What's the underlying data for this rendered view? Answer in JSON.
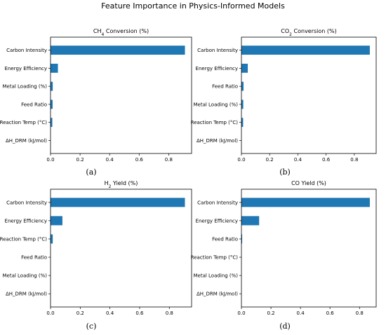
{
  "figure": {
    "title": "Feature Importance in Physics-Informed Models"
  },
  "chart_data": [
    {
      "type": "bar",
      "orientation": "horizontal",
      "title_main": "CH",
      "title_sub": "4",
      "title_rest": " Conversion (%)",
      "caption": "(a)",
      "categories": [
        "Carbon Intensity",
        "Energy Efficiency",
        "Metal Loading (%)",
        "Feed Ratio",
        "Reaction Temp (°C)",
        "ΔH_DRM (kJ/mol)"
      ],
      "values": [
        0.91,
        0.05,
        0.015,
        0.014,
        0.012,
        0.0
      ],
      "xticks": [
        "0.0",
        "0.2",
        "0.4",
        "0.6",
        "0.8"
      ],
      "xlim": [
        0,
        0.955
      ],
      "color": "#1f77b4"
    },
    {
      "type": "bar",
      "orientation": "horizontal",
      "title_main": "CO",
      "title_sub": "2",
      "title_rest": " Conversion (%)",
      "caption": "(b)",
      "categories": [
        "Carbon Intensity",
        "Energy Efficiency",
        "Feed Ratio",
        "Metal Loading (%)",
        "Reaction Temp (°C)",
        "ΔH_DRM (kJ/mol)"
      ],
      "values": [
        0.91,
        0.045,
        0.015,
        0.013,
        0.012,
        0.0
      ],
      "xticks": [
        "0.0",
        "0.2",
        "0.4",
        "0.6",
        "0.8"
      ],
      "xlim": [
        0,
        0.955
      ],
      "color": "#1f77b4"
    },
    {
      "type": "bar",
      "orientation": "horizontal",
      "title_main": "H",
      "title_sub": "2",
      "title_rest": " Yield (%)",
      "caption": "(c)",
      "categories": [
        "Carbon Intensity",
        "Energy Efficiency",
        "Reaction Temp (°C)",
        "Feed Ratio",
        "Metal Loading (%)",
        "ΔH_DRM (kJ/mol)"
      ],
      "values": [
        0.905,
        0.08,
        0.015,
        0.0,
        0.0,
        0.0
      ],
      "xticks": [
        "0.0",
        "0.2",
        "0.4",
        "0.6",
        "0.8"
      ],
      "xlim": [
        0,
        0.95
      ],
      "color": "#1f77b4"
    },
    {
      "type": "bar",
      "orientation": "horizontal",
      "title_main": "CO Yield (%)",
      "title_sub": "",
      "title_rest": "",
      "caption": "(d)",
      "categories": [
        "Carbon Intensity",
        "Energy Efficiency",
        "Feed Ratio",
        "Reaction Temp (°C)",
        "Metal Loading (%)",
        "ΔH_DRM (kJ/mol)"
      ],
      "values": [
        0.87,
        0.12,
        0.005,
        0.0,
        0.0,
        0.0
      ],
      "xticks": [
        "0.0",
        "0.2",
        "0.4",
        "0.6",
        "0.8"
      ],
      "xlim": [
        0,
        0.913
      ],
      "color": "#1f77b4"
    }
  ]
}
